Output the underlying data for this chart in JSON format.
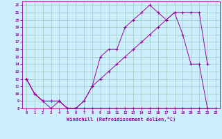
{
  "xlabel": "Windchill (Refroidissement éolien,°C)",
  "bg_color": "#cceeff",
  "line_color": "#990099",
  "grid_color": "#99ccbb",
  "xlim": [
    -0.5,
    23.5
  ],
  "ylim": [
    8,
    22.5
  ],
  "xticks": [
    0,
    1,
    2,
    3,
    4,
    5,
    6,
    7,
    8,
    9,
    10,
    11,
    12,
    13,
    14,
    15,
    16,
    17,
    18,
    19,
    20,
    21,
    22,
    23
  ],
  "yticks": [
    8,
    9,
    10,
    11,
    12,
    13,
    14,
    15,
    16,
    17,
    18,
    19,
    20,
    21,
    22
  ],
  "series1_x": [
    0,
    1,
    2,
    3,
    4,
    5,
    6,
    7,
    8,
    9,
    10,
    11,
    12,
    13,
    14,
    15,
    16,
    17,
    18,
    19,
    20,
    21,
    22,
    23
  ],
  "series1_y": [
    12,
    10,
    9,
    8,
    9,
    8,
    8,
    8,
    8,
    8,
    8,
    8,
    8,
    8,
    8,
    8,
    8,
    8,
    8,
    8,
    8,
    8,
    8,
    8
  ],
  "series2_x": [
    0,
    1,
    2,
    3,
    4,
    5,
    6,
    7,
    8,
    9,
    10,
    11,
    12,
    13,
    14,
    15,
    16,
    17,
    18,
    19,
    20,
    21,
    22
  ],
  "series2_y": [
    12,
    10,
    9,
    9,
    9,
    8,
    8,
    9,
    11,
    15,
    16,
    16,
    19,
    20,
    21,
    22,
    21,
    20,
    21,
    18,
    14,
    14,
    8
  ],
  "series3_x": [
    0,
    1,
    2,
    3,
    4,
    5,
    6,
    7,
    8,
    9,
    10,
    11,
    12,
    13,
    14,
    15,
    16,
    17,
    18,
    19,
    20,
    21,
    22
  ],
  "series3_y": [
    12,
    10,
    9,
    9,
    9,
    8,
    8,
    9,
    11,
    12,
    13,
    14,
    15,
    16,
    17,
    18,
    19,
    20,
    21,
    21,
    21,
    21,
    14
  ]
}
